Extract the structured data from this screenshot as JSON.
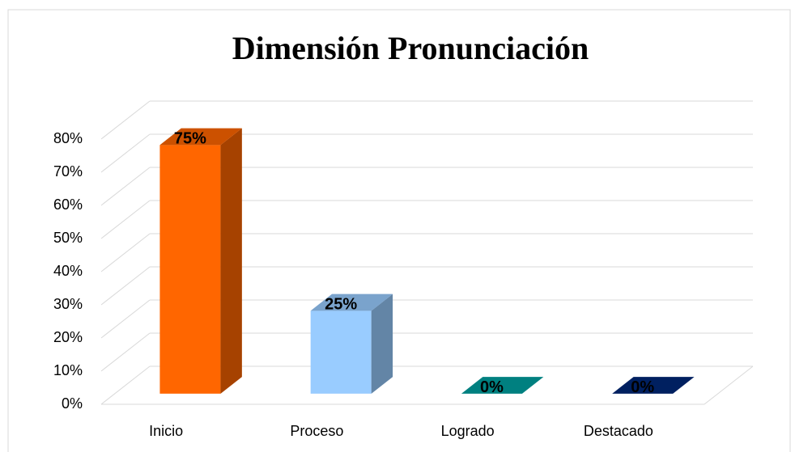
{
  "chart_data": {
    "type": "bar3d",
    "title": "Dimensión Pronunciación",
    "categories": [
      "Inicio",
      "Proceso",
      "Logrado",
      "Destacado"
    ],
    "values": [
      75,
      25,
      0,
      0
    ],
    "value_labels": [
      "75%",
      "25%",
      "0%",
      "0%"
    ],
    "colors": [
      "#ff6600",
      "#99ccff",
      "#008080",
      "#002060"
    ],
    "ylim": [
      0,
      80
    ],
    "yticks": [
      {
        "value": 0,
        "label": "0%"
      },
      {
        "value": 10,
        "label": "10%"
      },
      {
        "value": 20,
        "label": "20%"
      },
      {
        "value": 30,
        "label": "30%"
      },
      {
        "value": 40,
        "label": "40%"
      },
      {
        "value": 50,
        "label": "50%"
      },
      {
        "value": 60,
        "label": "60%"
      },
      {
        "value": 70,
        "label": "70%"
      },
      {
        "value": 80,
        "label": "80%"
      }
    ],
    "grid": true
  }
}
